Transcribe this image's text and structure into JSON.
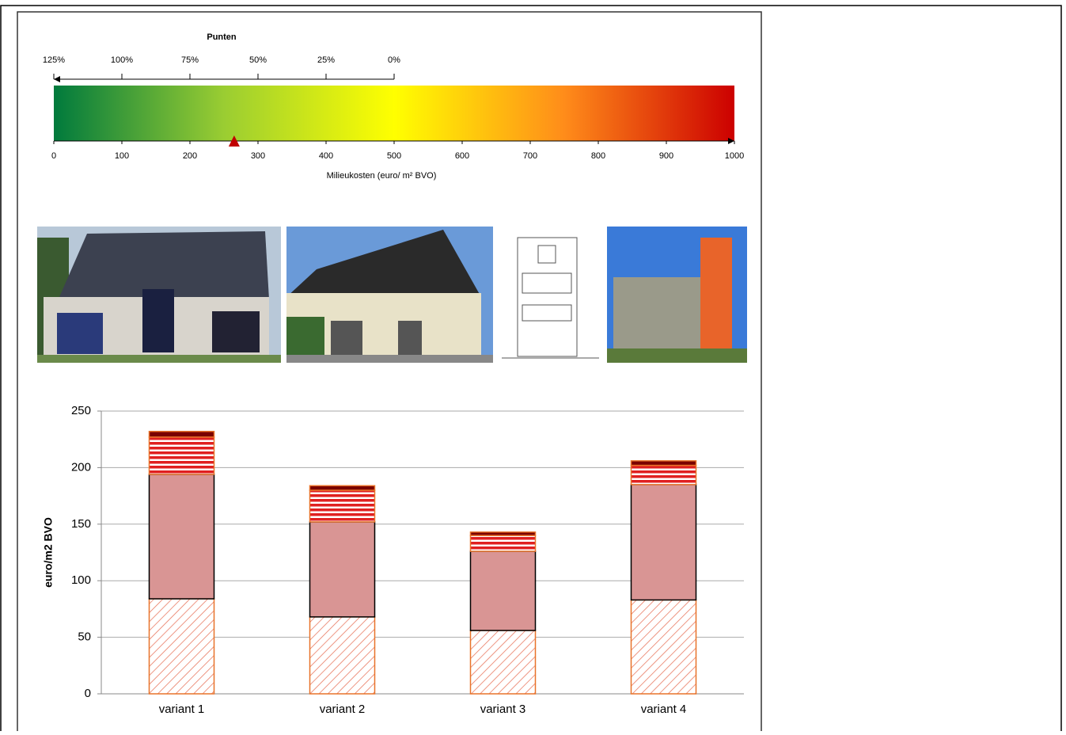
{
  "chart_data": [
    {
      "type": "scale",
      "title": "Punten",
      "xlabel": "Milieukosten (euro/ m² BVO)",
      "xlim": [
        0,
        1000
      ],
      "xticks": [
        0,
        100,
        200,
        300,
        400,
        500,
        600,
        700,
        800,
        900,
        1000
      ],
      "top_ticks": [
        {
          "value": 0,
          "label": "125%"
        },
        {
          "value": 100,
          "label": "100%"
        },
        {
          "value": 200,
          "label": "75%"
        },
        {
          "value": 300,
          "label": "50%"
        },
        {
          "value": 400,
          "label": "25%"
        },
        {
          "value": 500,
          "label": "0%"
        }
      ],
      "marker": 265,
      "marker_color": "#c00000",
      "gradient": [
        "#007a3d",
        "#9acd32",
        "#ffff00",
        "#ff8c1a",
        "#cc0000"
      ]
    },
    {
      "type": "bar",
      "stacked": true,
      "ylabel": "euro/m2 BVO",
      "categories": [
        "variant 1",
        "variant 2",
        "variant 3",
        "variant 4"
      ],
      "ylim": [
        0,
        250
      ],
      "yticks": [
        0,
        50,
        100,
        150,
        200,
        250
      ],
      "grid": true,
      "series": [
        {
          "color": "#e8735a",
          "pattern": "hatch",
          "values": [
            84,
            68,
            56,
            83
          ]
        },
        {
          "color": "#d99594",
          "pattern": "solid",
          "values": [
            110,
            84,
            70,
            102
          ]
        },
        {
          "color": "#e02020",
          "pattern": "stripes",
          "values": [
            33,
            28,
            14,
            17
          ]
        },
        {
          "color": "#7a0000",
          "pattern": "solid",
          "values": [
            5,
            4,
            3,
            4
          ]
        }
      ]
    }
  ]
}
